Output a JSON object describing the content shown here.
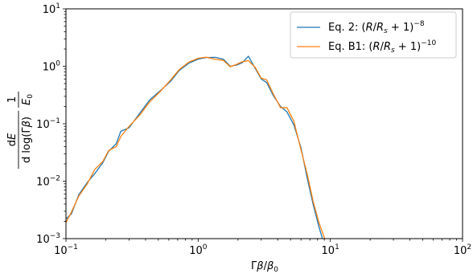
{
  "chart_data": {
    "type": "line",
    "xscale": "log",
    "yscale": "log",
    "xlim": [
      0.1,
      100
    ],
    "ylim": [
      0.001,
      10
    ],
    "grid": false,
    "legend_position": "top-right",
    "xlabel": "Γβ/β₀",
    "ylabel": "dE/d log(Γβ) · 1/E₀",
    "xticks": [
      {
        "value": 0.1,
        "base": "10",
        "exp": "−1"
      },
      {
        "value": 1,
        "base": "10",
        "exp": "0"
      },
      {
        "value": 10,
        "base": "10",
        "exp": "1"
      },
      {
        "value": 100,
        "base": "10",
        "exp": "2"
      }
    ],
    "yticks": [
      {
        "value": 0.001,
        "base": "10",
        "exp": "−3"
      },
      {
        "value": 0.01,
        "base": "10",
        "exp": "−2"
      },
      {
        "value": 0.1,
        "base": "10",
        "exp": "−1"
      },
      {
        "value": 1,
        "base": "10",
        "exp": "0"
      },
      {
        "value": 10,
        "base": "10",
        "exp": "1"
      }
    ],
    "series": [
      {
        "name": "Eq. 2: (R/Rₛ + 1)⁻⁸",
        "color": "#1f77b4",
        "points": [
          [
            0.1,
            0.0022
          ],
          [
            0.11,
            0.0027
          ],
          [
            0.125,
            0.0058
          ],
          [
            0.145,
            0.0095
          ],
          [
            0.165,
            0.0135
          ],
          [
            0.19,
            0.021
          ],
          [
            0.21,
            0.033
          ],
          [
            0.24,
            0.045
          ],
          [
            0.26,
            0.074
          ],
          [
            0.3,
            0.085
          ],
          [
            0.36,
            0.15
          ],
          [
            0.43,
            0.26
          ],
          [
            0.52,
            0.38
          ],
          [
            0.62,
            0.55
          ],
          [
            0.72,
            0.85
          ],
          [
            0.85,
            1.13
          ],
          [
            1.0,
            1.33
          ],
          [
            1.15,
            1.42
          ],
          [
            1.35,
            1.43
          ],
          [
            1.55,
            1.33
          ],
          [
            1.75,
            1.0
          ],
          [
            1.95,
            1.05
          ],
          [
            2.15,
            1.15
          ],
          [
            2.4,
            1.5
          ],
          [
            2.7,
            0.92
          ],
          [
            3.0,
            0.6
          ],
          [
            3.3,
            0.52
          ],
          [
            3.7,
            0.31
          ],
          [
            4.2,
            0.2
          ],
          [
            4.7,
            0.16
          ],
          [
            5.3,
            0.095
          ],
          [
            6.0,
            0.038
          ],
          [
            6.7,
            0.011
          ],
          [
            7.4,
            0.004
          ],
          [
            8.2,
            0.0016
          ],
          [
            8.9,
            0.00085
          ]
        ]
      },
      {
        "name": "Eq. B1: (R/Rₛ + 1)⁻¹⁰",
        "color": "#ff7f0e",
        "points": [
          [
            0.1,
            0.0019
          ],
          [
            0.11,
            0.0029
          ],
          [
            0.125,
            0.0055
          ],
          [
            0.145,
            0.009
          ],
          [
            0.165,
            0.016
          ],
          [
            0.19,
            0.022
          ],
          [
            0.21,
            0.034
          ],
          [
            0.24,
            0.04
          ],
          [
            0.26,
            0.06
          ],
          [
            0.3,
            0.09
          ],
          [
            0.36,
            0.14
          ],
          [
            0.43,
            0.24
          ],
          [
            0.52,
            0.37
          ],
          [
            0.62,
            0.58
          ],
          [
            0.72,
            0.88
          ],
          [
            0.85,
            1.18
          ],
          [
            1.0,
            1.38
          ],
          [
            1.15,
            1.44
          ],
          [
            1.35,
            1.32
          ],
          [
            1.55,
            1.27
          ],
          [
            1.75,
            0.98
          ],
          [
            1.95,
            1.08
          ],
          [
            2.15,
            1.2
          ],
          [
            2.4,
            1.25
          ],
          [
            2.7,
            0.96
          ],
          [
            3.0,
            0.62
          ],
          [
            3.3,
            0.58
          ],
          [
            3.7,
            0.33
          ],
          [
            4.2,
            0.19
          ],
          [
            4.7,
            0.19
          ],
          [
            5.3,
            0.11
          ],
          [
            6.0,
            0.035
          ],
          [
            6.7,
            0.013
          ],
          [
            7.4,
            0.0045
          ],
          [
            8.2,
            0.0019
          ],
          [
            9.3,
            0.00085
          ]
        ]
      }
    ]
  }
}
